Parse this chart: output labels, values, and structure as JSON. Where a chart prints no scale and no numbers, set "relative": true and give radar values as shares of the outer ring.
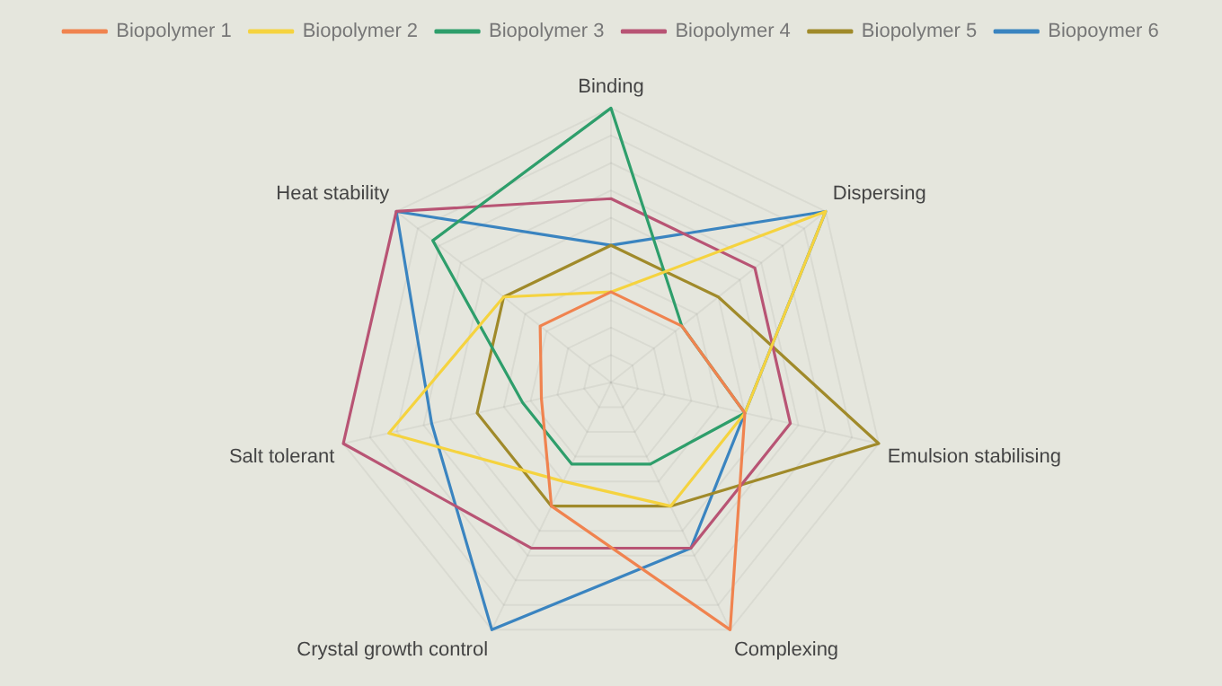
{
  "chart_data": {
    "type": "radar",
    "relative": true,
    "grid": true,
    "legend": "top",
    "marker": "none",
    "categories": [
      "Binding",
      "Dispersing",
      "Emulsion stabilising",
      "Complexing",
      "Crystal growth control",
      "Salt tolerant",
      "Heat stability"
    ],
    "series": [
      {
        "name": "Biopolymer 1",
        "color": "#f0834f",
        "values": [
          0.33,
          0.33,
          0.5,
          1,
          0.5,
          0.26,
          0.33
        ]
      },
      {
        "name": "Biopolymer 2",
        "color": "#f5d33f",
        "values": [
          0.33,
          1,
          0.5,
          0.5,
          0.4,
          0.83,
          0.5
        ]
      },
      {
        "name": "Biopolymer 3",
        "color": "#2e9e6b",
        "values": [
          1,
          0.33,
          0.5,
          0.33,
          0.33,
          0.33,
          0.83
        ]
      },
      {
        "name": "Biopolymer 4",
        "color": "#b85474",
        "values": [
          0.67,
          0.67,
          0.67,
          0.67,
          0.67,
          1,
          1
        ]
      },
      {
        "name": "Biopolymer 5",
        "color": "#a08a2a",
        "values": [
          0.5,
          0.5,
          1,
          0.5,
          0.5,
          0.5,
          0.5
        ]
      },
      {
        "name": "Biopoymer 6",
        "color": "#3a84c0",
        "values": [
          0.5,
          1,
          0.5,
          0.67,
          1,
          0.67,
          1
        ]
      }
    ]
  }
}
